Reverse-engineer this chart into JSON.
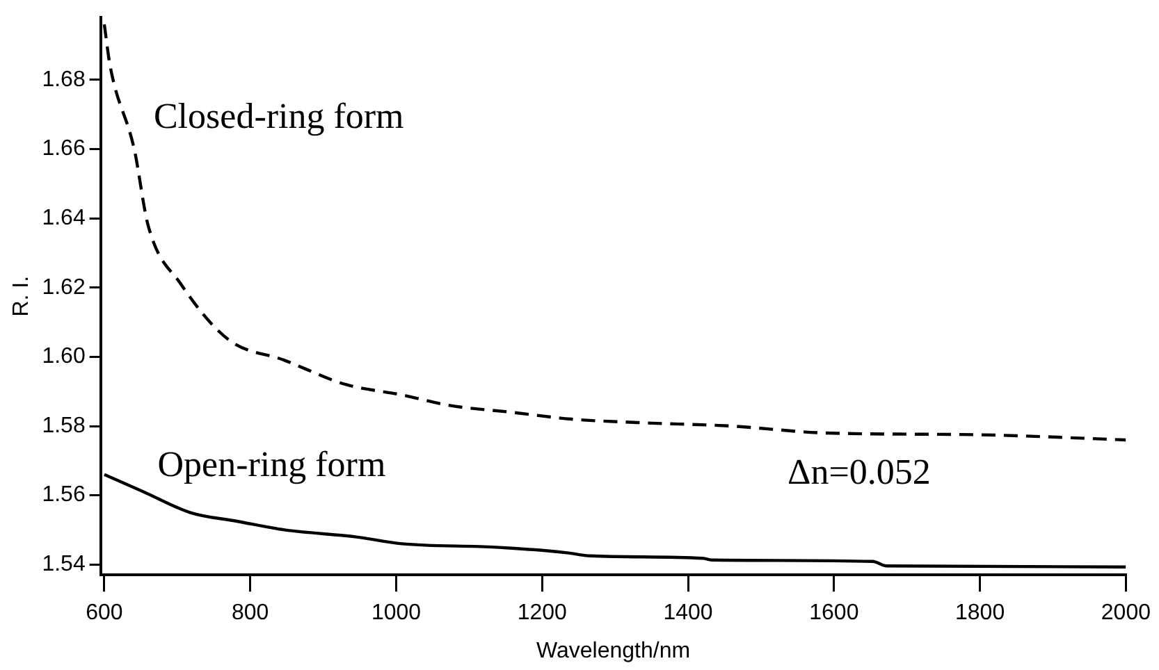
{
  "chart_data": {
    "type": "line",
    "xlabel": "Wavelength/nm",
    "ylabel": "R. I.",
    "annotations": [
      "Δn=0.052"
    ],
    "xlim": [
      595,
      2000
    ],
    "ylim": [
      1.537,
      1.698
    ],
    "xticks": [
      600,
      800,
      1000,
      1200,
      1400,
      1600,
      1800,
      2000
    ],
    "yticks": [
      1.54,
      1.56,
      1.58,
      {
        "value": 1.6,
        "label": "1.60"
      },
      1.62,
      1.64,
      1.66,
      1.68
    ],
    "grid": false,
    "legend": false,
    "marker": "none",
    "series": [
      {
        "name": "Closed-ring form",
        "color": "#000000",
        "line_style": "dashed",
        "x": [
          600,
          608,
          641,
          660,
          705,
          770,
          847,
          931,
          1008,
          1072,
          1157,
          1240,
          1331,
          1459,
          1588,
          1795,
          2000
        ],
        "values": [
          1.696,
          1.684,
          1.66,
          1.638,
          1.621,
          1.605,
          1.599,
          1.592,
          1.589,
          1.586,
          1.584,
          1.582,
          1.581,
          1.58,
          1.578,
          1.5775,
          1.576
        ]
      },
      {
        "name": "Open-ring form",
        "color": "#000000",
        "line_style": "solid",
        "x": [
          600,
          654,
          718,
          782,
          847,
          944,
          1008,
          1137,
          1234,
          1266,
          1420,
          1434,
          1653,
          1672,
          2000
        ],
        "values": [
          1.566,
          1.561,
          1.555,
          1.5525,
          1.55,
          1.548,
          1.546,
          1.545,
          1.5434,
          1.5425,
          1.5418,
          1.5413,
          1.5409,
          1.5396,
          1.5393
        ]
      }
    ]
  }
}
